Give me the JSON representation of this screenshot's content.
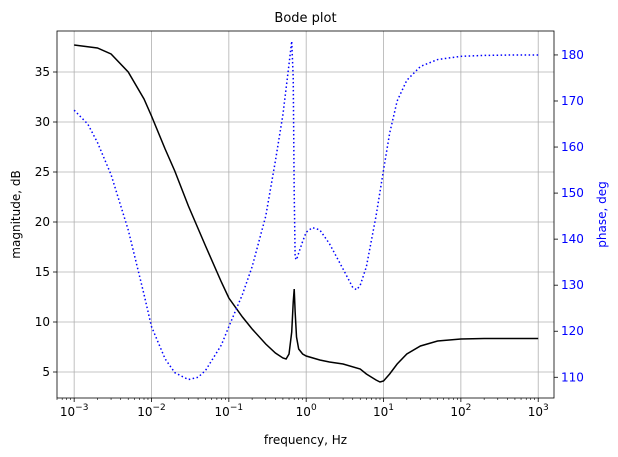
{
  "chart_data": {
    "type": "line",
    "title": "Bode plot",
    "xlabel": "frequency, Hz",
    "ylabel": "magnitude, dB",
    "ylabel_right": "phase, deg",
    "x_scale": "log",
    "xlim": [
      0.0006,
      1600
    ],
    "ylim": [
      2.4,
      39.1
    ],
    "ylim_right": [
      105.5,
      185.2
    ],
    "grid": true,
    "colors": {
      "magnitude": "#000000",
      "phase": "#0000ff",
      "grid": "#b0b0b0"
    },
    "x_ticks": [
      {
        "value": 0.001,
        "base": "10",
        "exp": "−3"
      },
      {
        "value": 0.01,
        "base": "10",
        "exp": "−2"
      },
      {
        "value": 0.1,
        "base": "10",
        "exp": "−1"
      },
      {
        "value": 1,
        "base": "10",
        "exp": "0"
      },
      {
        "value": 10,
        "base": "10",
        "exp": "1"
      },
      {
        "value": 100,
        "base": "10",
        "exp": "2"
      },
      {
        "value": 1000,
        "base": "10",
        "exp": "3"
      }
    ],
    "y_ticks": [
      {
        "value": 5,
        "label": "5"
      },
      {
        "value": 10,
        "label": "10"
      },
      {
        "value": 15,
        "label": "15"
      },
      {
        "value": 20,
        "label": "20"
      },
      {
        "value": 25,
        "label": "25"
      },
      {
        "value": 30,
        "label": "30"
      },
      {
        "value": 35,
        "label": "35"
      }
    ],
    "y_ticks_right": [
      {
        "value": 110,
        "label": "110"
      },
      {
        "value": 120,
        "label": "120"
      },
      {
        "value": 130,
        "label": "130"
      },
      {
        "value": 140,
        "label": "140"
      },
      {
        "value": 150,
        "label": "150"
      },
      {
        "value": 160,
        "label": "160"
      },
      {
        "value": 170,
        "label": "170"
      },
      {
        "value": 180,
        "label": "180"
      }
    ],
    "series": [
      {
        "axis": "left",
        "style": "solid",
        "x": [
          0.001,
          0.002,
          0.003,
          0.005,
          0.008,
          0.01,
          0.015,
          0.02,
          0.03,
          0.05,
          0.08,
          0.1,
          0.15,
          0.2,
          0.3,
          0.4,
          0.5,
          0.55,
          0.6,
          0.65,
          0.68,
          0.7,
          0.72,
          0.75,
          0.8,
          0.9,
          1.0,
          1.5,
          2,
          3,
          5,
          6,
          8,
          9,
          10,
          12,
          15,
          20,
          30,
          50,
          100,
          200,
          500,
          1000
        ],
        "y": [
          37.7,
          37.4,
          36.8,
          35.0,
          32.3,
          30.6,
          27.3,
          25.1,
          21.6,
          17.6,
          14.0,
          12.4,
          10.5,
          9.3,
          7.8,
          6.9,
          6.4,
          6.3,
          6.8,
          9.0,
          12.0,
          13.3,
          11.0,
          8.5,
          7.3,
          6.8,
          6.6,
          6.2,
          6.0,
          5.8,
          5.3,
          4.8,
          4.2,
          4.0,
          4.1,
          4.8,
          5.8,
          6.8,
          7.6,
          8.1,
          8.3,
          8.35,
          8.35,
          8.35
        ]
      },
      {
        "axis": "right",
        "style": "dotted",
        "x": [
          0.001,
          0.0015,
          0.002,
          0.003,
          0.005,
          0.008,
          0.01,
          0.015,
          0.02,
          0.03,
          0.04,
          0.05,
          0.08,
          0.1,
          0.15,
          0.2,
          0.3,
          0.4,
          0.5,
          0.6,
          0.65,
          0.68,
          0.7,
          0.72,
          0.75,
          0.8,
          0.9,
          1.0,
          1.2,
          1.5,
          2,
          3,
          4,
          4.5,
          5,
          6,
          8,
          10,
          12,
          15,
          20,
          30,
          50,
          100,
          200,
          500,
          1000
        ],
        "y": [
          168,
          165,
          161,
          154,
          142,
          128,
          121,
          114,
          111,
          109.5,
          110,
          111.5,
          117,
          121,
          128,
          134,
          145,
          157,
          167,
          178,
          183,
          175,
          150,
          136,
          135.5,
          137,
          139.5,
          141.5,
          142.5,
          142,
          139,
          133.5,
          129.5,
          129,
          130,
          134,
          145,
          155,
          163,
          170,
          174.5,
          177.5,
          179,
          179.7,
          179.9,
          180,
          180
        ]
      }
    ]
  }
}
